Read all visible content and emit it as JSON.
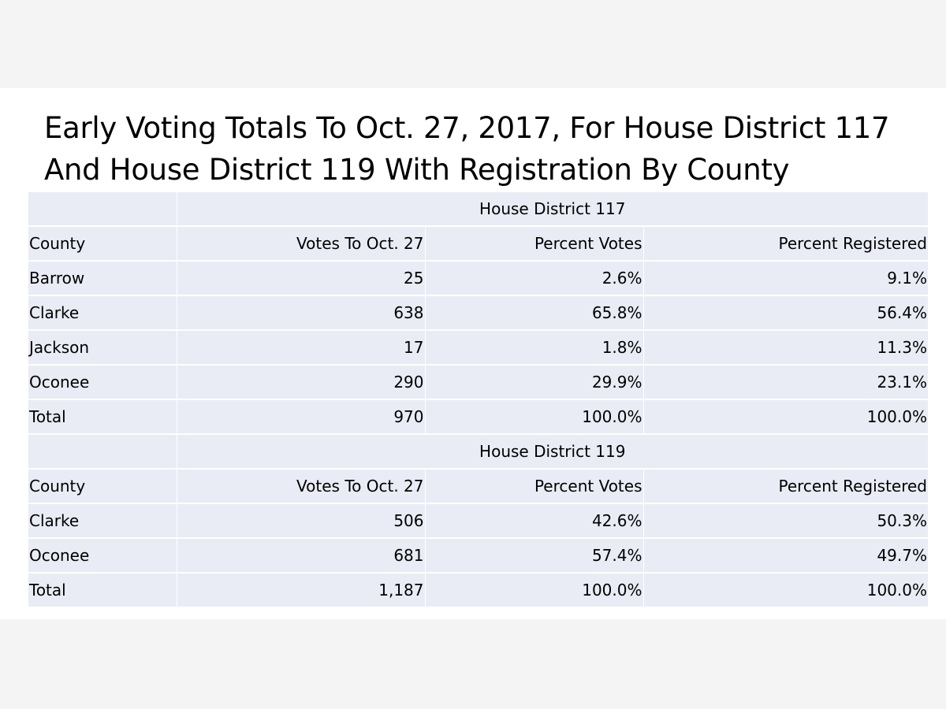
{
  "title": {
    "line1": "Early Voting Totals To Oct. 27, 2017, For House District 117",
    "line2": "And House District 119 With Registration By County"
  },
  "columns": {
    "county": "County",
    "votes": "Votes To Oct. 27",
    "percent_votes": "Percent Votes",
    "percent_registered": "Percent Registered"
  },
  "district_117": {
    "label": "House District 117",
    "rows": [
      {
        "county": "Barrow",
        "votes": "25",
        "percent_votes": "2.6%",
        "percent_registered": "9.1%"
      },
      {
        "county": "Clarke",
        "votes": "638",
        "percent_votes": "65.8%",
        "percent_registered": "56.4%"
      },
      {
        "county": "Jackson",
        "votes": "17",
        "percent_votes": "1.8%",
        "percent_registered": "11.3%"
      },
      {
        "county": "Oconee",
        "votes": "290",
        "percent_votes": "29.9%",
        "percent_registered": "23.1%"
      },
      {
        "county": "Total",
        "votes": "970",
        "percent_votes": "100.0%",
        "percent_registered": "100.0%"
      }
    ]
  },
  "district_119": {
    "label": "House District 119",
    "rows": [
      {
        "county": "Clarke",
        "votes": "506",
        "percent_votes": "42.6%",
        "percent_registered": "50.3%"
      },
      {
        "county": "Oconee",
        "votes": "681",
        "percent_votes": "57.4%",
        "percent_registered": "49.7%"
      },
      {
        "county": "Total",
        "votes": "1,187",
        "percent_votes": "100.0%",
        "percent_registered": "100.0%"
      }
    ]
  }
}
